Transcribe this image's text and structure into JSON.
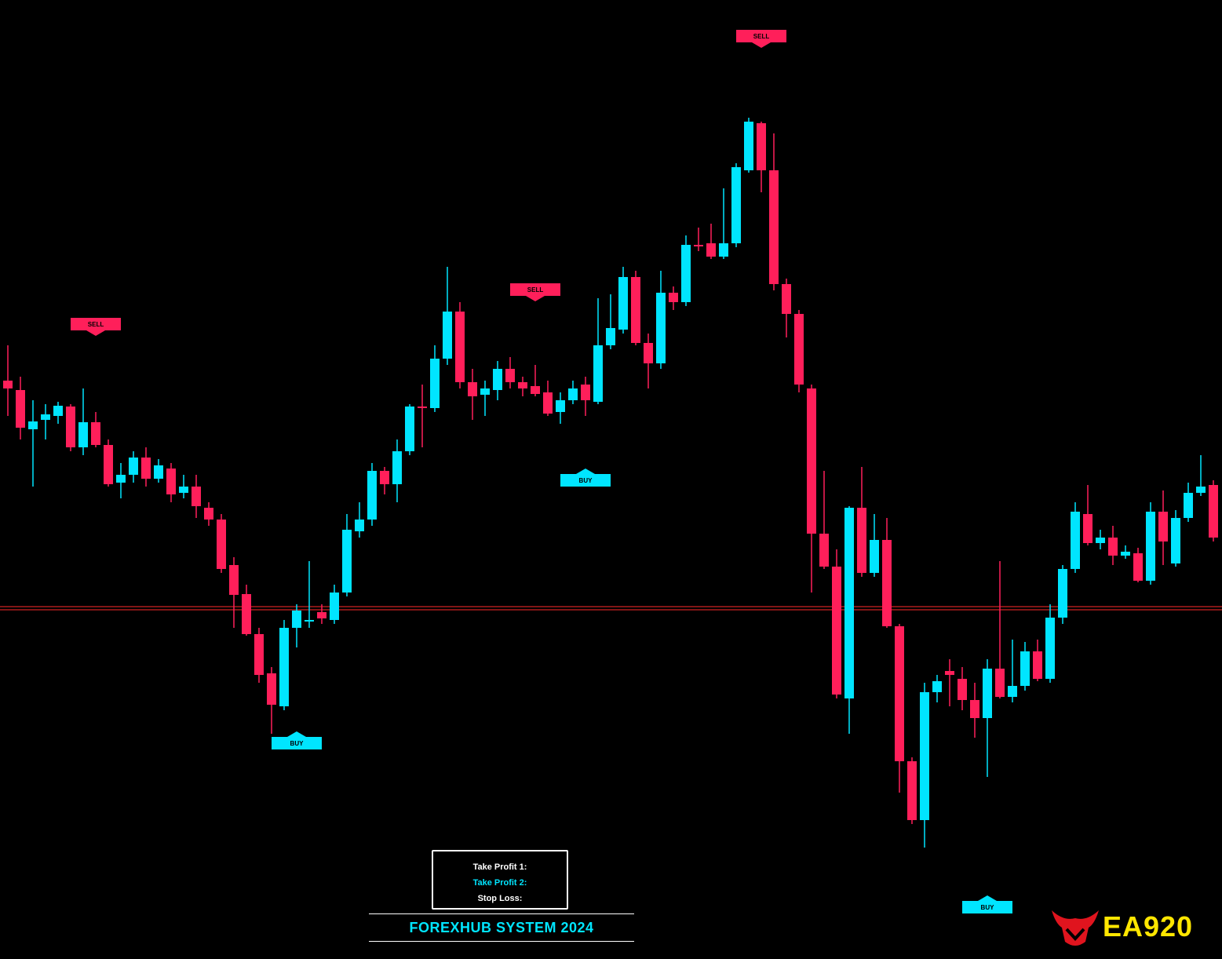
{
  "chart_data": {
    "type": "candlestick",
    "up_color": "#00e5ff",
    "down_color": "#ff1f5a",
    "ylim": [
      0,
      1222
    ],
    "open": [
      737,
      725,
      675,
      687,
      692,
      704,
      652,
      684,
      655,
      607,
      617,
      639,
      612,
      625,
      594,
      602,
      575,
      560,
      502,
      465,
      414,
      364,
      322,
      422,
      430,
      442,
      432,
      467,
      545,
      560,
      622,
      605,
      647,
      704,
      702,
      765,
      825,
      735,
      719,
      725,
      752,
      735,
      730,
      722,
      697,
      712,
      732,
      710,
      782,
      802,
      869,
      785,
      759,
      849,
      837,
      910,
      912,
      895,
      912,
      1005,
      1065,
      1005,
      860,
      822,
      727,
      542,
      500,
      332,
      575,
      492,
      534,
      424,
      252,
      177,
      340,
      367,
      357,
      330,
      307,
      370,
      334,
      348,
      392,
      357,
      435,
      497,
      567,
      530,
      537,
      514,
      517,
      482,
      570,
      504,
      562,
      594,
      604
    ],
    "high": [
      782,
      742,
      712,
      707,
      710,
      707,
      727,
      697,
      662,
      632,
      647,
      652,
      637,
      632,
      617,
      617,
      582,
      567,
      512,
      477,
      422,
      372,
      432,
      452,
      507,
      452,
      477,
      567,
      582,
      632,
      627,
      662,
      707,
      732,
      782,
      882,
      837,
      752,
      737,
      762,
      767,
      742,
      757,
      737,
      722,
      737,
      742,
      842,
      847,
      882,
      877,
      797,
      877,
      857,
      922,
      932,
      937,
      982,
      1014,
      1072,
      1067,
      1052,
      867,
      827,
      732,
      622,
      522,
      577,
      627,
      567,
      562,
      427,
      257,
      352,
      362,
      382,
      372,
      352,
      382,
      507,
      407,
      404,
      407,
      452,
      502,
      582,
      604,
      547,
      552,
      527,
      524,
      582,
      597,
      572,
      607,
      642,
      610
    ],
    "low": [
      692,
      662,
      602,
      662,
      682,
      647,
      642,
      652,
      602,
      587,
      607,
      602,
      607,
      582,
      587,
      562,
      552,
      492,
      422,
      412,
      352,
      287,
      317,
      397,
      422,
      427,
      427,
      462,
      537,
      552,
      592,
      582,
      642,
      652,
      697,
      757,
      727,
      687,
      692,
      712,
      727,
      717,
      717,
      692,
      682,
      707,
      692,
      707,
      777,
      797,
      782,
      727,
      752,
      827,
      832,
      902,
      892,
      892,
      907,
      1002,
      977,
      852,
      792,
      722,
      467,
      497,
      332,
      287,
      487,
      487,
      422,
      212,
      172,
      142,
      327,
      322,
      317,
      282,
      232,
      332,
      327,
      342,
      354,
      352,
      427,
      492,
      527,
      522,
      502,
      510,
      480,
      477,
      502,
      500,
      557,
      590,
      532
    ],
    "close": [
      727,
      677,
      685,
      694,
      705,
      652,
      684,
      655,
      605,
      617,
      639,
      612,
      629,
      592,
      602,
      577,
      560,
      497,
      464,
      414,
      362,
      324,
      422,
      444,
      432,
      434,
      467,
      547,
      560,
      622,
      605,
      647,
      704,
      702,
      765,
      825,
      735,
      717,
      727,
      752,
      735,
      727,
      720,
      695,
      712,
      727,
      712,
      782,
      804,
      869,
      785,
      759,
      849,
      837,
      910,
      908,
      895,
      912,
      1009,
      1067,
      1005,
      860,
      822,
      732,
      542,
      500,
      337,
      575,
      492,
      534,
      424,
      252,
      177,
      340,
      354,
      362,
      330,
      307,
      370,
      334,
      348,
      392,
      357,
      435,
      497,
      570,
      530,
      537,
      514,
      519,
      482,
      570,
      532,
      562,
      594,
      602,
      537
    ],
    "price_lines": [
      449,
      445
    ],
    "price_line_color": "#ff2a2a",
    "signals": [
      {
        "label": "SELL",
        "index": 7,
        "value": 809,
        "color": "#ff1f5a"
      },
      {
        "label": "SELL",
        "index": 42,
        "value": 853,
        "color": "#ff1f5a"
      },
      {
        "label": "SELL",
        "index": 60,
        "value": 1176,
        "color": "#ff1f5a"
      },
      {
        "label": "BUY",
        "index": 23,
        "value": 275,
        "color": "#00e5ff"
      },
      {
        "label": "BUY",
        "index": 46,
        "value": 610,
        "color": "#00e5ff"
      },
      {
        "label": "BUY",
        "index": 78,
        "value": 66,
        "color": "#00e5ff"
      }
    ]
  },
  "panel": {
    "take_profit_1": "Take Profit 1:",
    "take_profit_2": "Take Profit 2:",
    "stop_loss": "Stop Loss:"
  },
  "title": "FOREXHUB SYSTEM 2024",
  "logo": "EA920"
}
